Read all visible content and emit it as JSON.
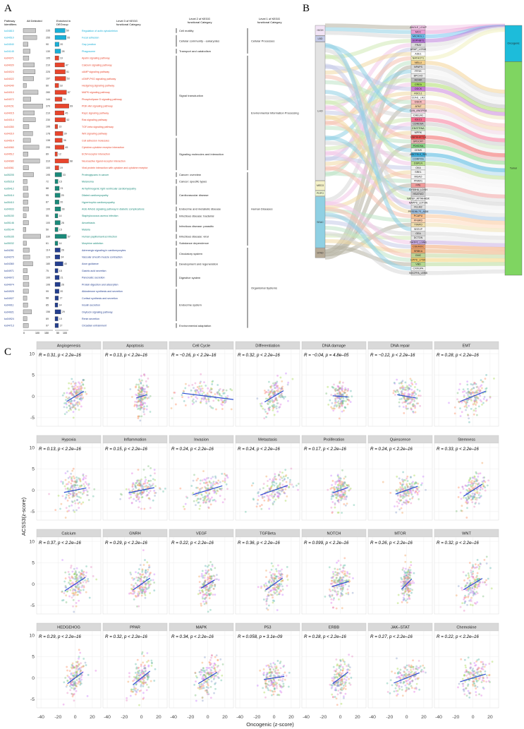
{
  "panels": {
    "a": "A",
    "b": "B",
    "c": "C"
  },
  "panel_a": {
    "headers": {
      "pathway": [
        "Pathway",
        "Identifiers"
      ],
      "all": [
        "All Detected"
      ],
      "enriched": [
        "Enriched in",
        "DEGroup"
      ],
      "level3": [
        "Level 3 of KEGG",
        "functional Category"
      ],
      "level2": [
        "Level 2 of KEGG",
        "functional Category"
      ],
      "level1": [
        "Level 1 of KEGG",
        "functional Category"
      ]
    },
    "axis_ticks": [
      "0",
      "100",
      "150",
      "50",
      "100"
    ],
    "rows": [
      {
        "id": "ko04810",
        "all": 235,
        "enr": 50,
        "name": "Regulation of actin cytoskeleton",
        "c": "#1ab0d8"
      },
      {
        "id": "ko04510",
        "all": 255,
        "enr": 55,
        "name": "Focal adhesion",
        "c": "#1ab0d8"
      },
      {
        "id": "ko04540",
        "all": 90,
        "enr": 20,
        "name": "Gap junction",
        "c": "#1ab0d8"
      },
      {
        "id": "ko04145",
        "all": 130,
        "enr": 28,
        "name": "Phagosome",
        "c": "#1ab0d8"
      },
      {
        "id": "ko04371",
        "all": 105,
        "enr": 19,
        "name": "Apelin signaling pathway",
        "c": "#e8452c"
      },
      {
        "id": "ko04020",
        "all": 210,
        "enr": 47,
        "name": "Calcium signaling pathway",
        "c": "#e8452c"
      },
      {
        "id": "ko04024",
        "all": 225,
        "enr": 51,
        "name": "cAMP signaling pathway",
        "c": "#e8452c"
      },
      {
        "id": "ko04022",
        "all": 197,
        "enr": 53,
        "name": "cGMP-PKG signaling pathway",
        "c": "#e8452c"
      },
      {
        "id": "ko04340",
        "all": 60,
        "enr": 18,
        "name": "Hedgehog signaling pathway",
        "c": "#e8452c"
      },
      {
        "id": "ko04010",
        "all": 280,
        "enr": 57,
        "name": "MAPK signaling pathway",
        "c": "#e8452c"
      },
      {
        "id": "ko04072",
        "all": 144,
        "enr": 35,
        "name": "Phospholipase D signaling pathway",
        "c": "#e8452c"
      },
      {
        "id": "ko04151",
        "all": 370,
        "enr": 69,
        "name": "PI3K-Akt signaling pathway",
        "c": "#e8452c"
      },
      {
        "id": "ko04015",
        "all": 210,
        "enr": 45,
        "name": "Rap1 signaling pathway",
        "c": "#e8452c"
      },
      {
        "id": "ko04014",
        "all": 230,
        "enr": 52,
        "name": "Ras signaling pathway",
        "c": "#e8452c"
      },
      {
        "id": "ko04350",
        "all": 106,
        "enr": 13,
        "name": "TGF-beta signaling pathway",
        "c": "#e8452c"
      },
      {
        "id": "ko04310",
        "all": 178,
        "enr": 39,
        "name": "Wnt signaling pathway",
        "c": "#e8452c"
      },
      {
        "id": "ko04514",
        "all": 138,
        "enr": 36,
        "name": "Cell adhesion molecules",
        "c": "#e8452c"
      },
      {
        "id": "ko04060",
        "all": 295,
        "enr": 45,
        "name": "Cytokine-cytokine receptor interaction",
        "c": "#e8452c"
      },
      {
        "id": "ko04512",
        "all": 89,
        "enr": 12,
        "name": "ECM-receptor interaction",
        "c": "#e8452c"
      },
      {
        "id": "ko04080",
        "all": 310,
        "enr": 68,
        "name": "Neuroactive ligand-receptor interaction",
        "c": "#e8452c"
      },
      {
        "id": "ko04061",
        "all": 100,
        "enr": 19,
        "name": "Viral protein interaction with cytokine and cytokine receptor",
        "c": "#e8452c"
      },
      {
        "id": "ko05205",
        "all": 195,
        "enr": 33,
        "name": "Proteoglycans in cancer",
        "c": "#1a8a7a"
      },
      {
        "id": "ko05218",
        "all": 72,
        "enr": 15,
        "name": "Melanoma",
        "c": "#1a8a7a"
      },
      {
        "id": "ko05412",
        "all": 88,
        "enr": 21,
        "name": "Arrhythmogenic right ventricular cardiomyopathy",
        "c": "#1a8a7a"
      },
      {
        "id": "ko05414",
        "all": 95,
        "enr": 25,
        "name": "Dilated cardiomyopathy",
        "c": "#1a8a7a"
      },
      {
        "id": "ko05410",
        "all": 87,
        "enr": 20,
        "name": "Hypertrophic cardiomyopathy",
        "c": "#1a8a7a"
      },
      {
        "id": "ko04933",
        "all": 100,
        "enr": 28,
        "name": "AGE-RAGE signaling pathway in diabetic complications",
        "c": "#1a8a7a"
      },
      {
        "id": "ko05150",
        "all": 55,
        "enr": 14,
        "name": "Staphylococcus aureus infection",
        "c": "#1a8a7a"
      },
      {
        "id": "ko05146",
        "all": 100,
        "enr": 26,
        "name": "Amoebiasis",
        "c": "#1a8a7a"
      },
      {
        "id": "ko05144",
        "all": 50,
        "enr": 15,
        "name": "Malaria",
        "c": "#1a8a7a"
      },
      {
        "id": "ko05165",
        "all": 330,
        "enr": 57,
        "name": "Human papillomavirus infection",
        "c": "#1a8a7a"
      },
      {
        "id": "ko05032",
        "all": 61,
        "enr": 14,
        "name": "Morphine addiction",
        "c": "#1a8a7a"
      },
      {
        "id": "ko04261",
        "all": 114,
        "enr": 26,
        "name": "Adrenergic signaling in cardiomyocytes",
        "c": "#243f8f"
      },
      {
        "id": "ko04270",
        "all": 124,
        "enr": 24,
        "name": "Vascular smooth muscle contraction",
        "c": "#243f8f"
      },
      {
        "id": "ko04360",
        "all": 180,
        "enr": 40,
        "name": "Axon guidance",
        "c": "#243f8f"
      },
      {
        "id": "ko04971",
        "all": 75,
        "enr": 15,
        "name": "Gastric acid secretion",
        "c": "#243f8f"
      },
      {
        "id": "ko04972",
        "all": 100,
        "enr": 21,
        "name": "Pancreatic secretion",
        "c": "#243f8f"
      },
      {
        "id": "ko04974",
        "all": 106,
        "enr": 26,
        "name": "Protein digestion and absorption",
        "c": "#243f8f"
      },
      {
        "id": "ko04925",
        "all": 99,
        "enr": 20,
        "name": "Aldosterone synthesis and secretion",
        "c": "#243f8f"
      },
      {
        "id": "ko04927",
        "all": 68,
        "enr": 17,
        "name": "Cortisol synthesis and secretion",
        "c": "#243f8f"
      },
      {
        "id": "ko04911",
        "all": 85,
        "enr": 14,
        "name": "Insulin secretion",
        "c": "#243f8f"
      },
      {
        "id": "ko04921",
        "all": 156,
        "enr": 29,
        "name": "Oxytocin signaling pathway",
        "c": "#243f8f"
      },
      {
        "id": "ko04924",
        "all": 69,
        "enr": 15,
        "name": "Renin secretion",
        "c": "#243f8f"
      },
      {
        "id": "ko04713",
        "all": 97,
        "enr": 17,
        "name": "Circadian entrainment",
        "c": "#243f8f"
      }
    ],
    "level2": [
      {
        "name": "Cell motility",
        "from": 0,
        "to": 0
      },
      {
        "name": "Cellular community - eukaryotes",
        "from": 1,
        "to": 2
      },
      {
        "name": "Transport and catabolism",
        "from": 3,
        "to": 3
      },
      {
        "name": "Signal transduction",
        "from": 4,
        "to": 15
      },
      {
        "name": "Signaling molecules and interaction",
        "from": 16,
        "to": 20
      },
      {
        "name": "Cancer: overview",
        "from": 21,
        "to": 21
      },
      {
        "name": "Cancer: specific types",
        "from": 22,
        "to": 22
      },
      {
        "name": "Cardiovascular disease",
        "from": 23,
        "to": 25
      },
      {
        "name": "Endocrine and metabolic disease",
        "from": 26,
        "to": 26
      },
      {
        "name": "Infectious disease: bacterial",
        "from": 27,
        "to": 27
      },
      {
        "name": "Infectious disease: parasitic",
        "from": 28,
        "to": 29
      },
      {
        "name": "Infectious disease: viral",
        "from": 30,
        "to": 30
      },
      {
        "name": "Substance dependence",
        "from": 31,
        "to": 31
      },
      {
        "name": "Circulatory system",
        "from": 32,
        "to": 33
      },
      {
        "name": "Development and regeneration",
        "from": 34,
        "to": 34
      },
      {
        "name": "Digestive system",
        "from": 35,
        "to": 37
      },
      {
        "name": "Endocrine system",
        "from": 38,
        "to": 42
      },
      {
        "name": "Environmental adaptation",
        "from": 43,
        "to": 43
      }
    ],
    "level1": [
      {
        "name": "Cellular Processes",
        "from": 0,
        "to": 3
      },
      {
        "name": "Environmental Information Processing",
        "from": 4,
        "to": 20
      },
      {
        "name": "Human Diseases",
        "from": 21,
        "to": 31
      },
      {
        "name": "Organismal Systems",
        "from": 32,
        "to": 43
      }
    ]
  },
  "panel_b": {
    "left_nodes": [
      {
        "label": "HIGH",
        "color": "#f2e4f6",
        "from": 0,
        "to": 0.04
      },
      {
        "label": "LBD",
        "color": "#c5cbe8",
        "from": 0.042,
        "to": 0.065
      },
      {
        "label": "LHO",
        "color": "#e3e3e3",
        "from": 0.067,
        "to": 0.62
      },
      {
        "label": "MED3",
        "color": "#f4f1c8",
        "from": 0.622,
        "to": 0.66
      },
      {
        "label": "PDPO",
        "color": "#eef7d0",
        "from": 0.662,
        "to": 0.683
      },
      {
        "label": "SEAC",
        "color": "#8fd0e3",
        "from": 0.685,
        "to": 0.89
      },
      {
        "label": "STAD",
        "color": "#b6aa96",
        "from": 0.892,
        "to": 0.93
      }
    ],
    "genes": [
      "ANGLE_LDUP",
      "MCC",
      "MICROL1",
      "SOPNBT1",
      "FRAT",
      "ARAP_LOSAI",
      "ADE1",
      "NATHOT1",
      "NELLI",
      "NPAPS",
      "FRYK",
      "BPCHO",
      "ACHIK",
      "CREA",
      "ODCK",
      "ASCL1",
      "CDN1_LR3",
      "DSCK",
      "ATNT",
      "CAN_ANGPEA",
      "CHELA1",
      "ICEC1",
      "CDNDSA",
      "ENSTRNA",
      "MPRK",
      "GNPHHKT1A",
      "SPDCRT",
      "PDKDSA",
      "CEMS",
      "ABCTEL0_SIS",
      "CORPOS",
      "DSPLN",
      "OKA",
      "SRE1",
      "MGAO",
      "PRAR1",
      "FPE",
      "SYS5HU_LDSH",
      "HSATMO",
      "NATEF_ATTAHASK",
      "NAPPS_LDTON",
      "FELM2",
      "PRSDBL7S_ADM",
      "PCAPU",
      "PFBRD",
      "TTAPO",
      "SEEVP",
      "GEA",
      "DCTDN",
      "NATPC_LSNB",
      "CDEMOC",
      "SRBKA",
      "GMC",
      "EPPD_LPDK",
      "VBD",
      "CXRGPA",
      "NGCFFA_LEBB"
    ],
    "gene_colors": [
      "#f3c7e7",
      "#e79bd3",
      "#6ec2f0",
      "#b673d8",
      "#dcdcdc",
      "#e9e9e9",
      "#ffffff",
      "#f0f0b8",
      "#f4cf8c",
      "#dadada",
      "#f2f2f2",
      "#ededed",
      "#bcbcbc",
      "#a5d95e",
      "#c57bd8",
      "#e9e6b5",
      "#ffffff",
      "#f7bcbc",
      "#f3d2a8",
      "#f0cfe1",
      "#f1f1f1",
      "#f76b8f",
      "#c8c8c8",
      "#cce8c0",
      "#eeeeee",
      "#ef5353",
      "#e8b4b4",
      "#88d686",
      "#f1f1f1",
      "#3aaedc",
      "#a9d6ec",
      "#b6de8a",
      "#efefef",
      "#f3f3f3",
      "#f7f7f7",
      "#f8f8f8",
      "#f09a9a",
      "#dddddd",
      "#cecece",
      "#eeeeee",
      "#f3f3f3",
      "#e0e0e0",
      "#9fc3e5",
      "#f9c18f",
      "#ffd5b5",
      "#eeddaa",
      "#f7f7f7",
      "#d7d7d7",
      "#e7e7e7",
      "#c5aae2",
      "#f1a06a",
      "#e9a66e",
      "#bcd394",
      "#f4d070",
      "#b2d88f",
      "#f5f5f5",
      "#d8d8d8"
    ],
    "right_nodes": [
      {
        "label": "Oncogenic",
        "color": "#1dbcda",
        "from": 0,
        "to": 0.145
      },
      {
        "label": "Tumor",
        "color": "#7fd561",
        "from": 0.145,
        "to": 1
      }
    ]
  },
  "panel_c": {
    "ylabel": "ACSS3(z-score)",
    "xlabel": "Oncogenic (z-score)",
    "x_ticks": [
      "-40",
      "-20",
      "0",
      "20"
    ],
    "y_ticks": [
      "10",
      "5",
      "0",
      "-5"
    ],
    "facets": [
      {
        "name": "Angiogenesis",
        "stat": "R = 0.31, p < 2.2e–16",
        "slope": 0.12,
        "width": 20,
        "height": 6
      },
      {
        "name": "Apoptosis",
        "stat": "R = 0.13, p < 2.2e–16",
        "slope": 0.06,
        "width": 12,
        "height": 7
      },
      {
        "name": "Cell Cycle",
        "stat": "R = −0.16, p < 2.2e–16",
        "slope": -0.025,
        "width": 60,
        "height": 5
      },
      {
        "name": "Differentiation",
        "stat": "R = 0.32, p < 2.2e–16",
        "slope": 0.12,
        "width": 22,
        "height": 6
      },
      {
        "name": "DNA damage",
        "stat": "R = −0.04, p = 4.8e–05",
        "slope": -0.015,
        "width": 18,
        "height": 6
      },
      {
        "name": "DNA repair",
        "stat": "R = −0.12, p < 2.2e–16",
        "slope": -0.035,
        "width": 22,
        "height": 6
      },
      {
        "name": "EMT",
        "stat": "R = 0.28, p < 2.2e–16",
        "slope": 0.08,
        "width": 30,
        "height": 6
      },
      {
        "name": "Hypoxia",
        "stat": "R = 0.13, p < 2.2e–16",
        "slope": 0.04,
        "width": 26,
        "height": 7
      },
      {
        "name": "Inflammation",
        "stat": "R = 0.15, p < 2.2e–16",
        "slope": 0.04,
        "width": 30,
        "height": 6
      },
      {
        "name": "Invasion",
        "stat": "R = 0.24, p < 2.2e–16",
        "slope": 0.06,
        "width": 34,
        "height": 6
      },
      {
        "name": "Metastasis",
        "stat": "R = 0.24, p < 2.2e–16",
        "slope": 0.07,
        "width": 32,
        "height": 6
      },
      {
        "name": "Proliferation",
        "stat": "R = 0.17, p < 2.2e–16",
        "slope": 0.07,
        "width": 18,
        "height": 7
      },
      {
        "name": "Quiescence",
        "stat": "R = 0.24, p < 2.2e–16",
        "slope": 0.07,
        "width": 26,
        "height": 6
      },
      {
        "name": "Stemness",
        "stat": "R = 0.33, p < 2.2e–16",
        "slope": 0.13,
        "width": 22,
        "height": 6
      },
      {
        "name": "Calcium",
        "stat": "R = 0.37, p < 2.2e–16",
        "slope": 0.13,
        "width": 24,
        "height": 7
      },
      {
        "name": "GNRH",
        "stat": "R = 0.29, p < 2.2e–16",
        "slope": 0.14,
        "width": 20,
        "height": 7
      },
      {
        "name": "VEGF",
        "stat": "R = 0.22, p < 2.2e–16",
        "slope": 0.12,
        "width": 16,
        "height": 7
      },
      {
        "name": "TGFBeta",
        "stat": "R = 0.36, p < 2.2e–16",
        "slope": 0.14,
        "width": 20,
        "height": 7
      },
      {
        "name": "NOTCH",
        "stat": "R = 0.099, p < 2.2e–16",
        "slope": 0.06,
        "width": 20,
        "height": 7
      },
      {
        "name": "MTOR",
        "stat": "R = 0.26, p < 2.2e–16",
        "slope": 0.2,
        "width": 12,
        "height": 7
      },
      {
        "name": "WNT",
        "stat": "R = 0.32, p < 2.2e–16",
        "slope": 0.12,
        "width": 22,
        "height": 7
      },
      {
        "name": "HEDGEHOG",
        "stat": "R = 0.29, p < 2.2e–16",
        "slope": 0.15,
        "width": 18,
        "height": 7
      },
      {
        "name": "PPAR",
        "stat": "R = 0.32, p < 2.2e–16",
        "slope": 0.16,
        "width": 20,
        "height": 7
      },
      {
        "name": "MAPK",
        "stat": "R = 0.34, p < 2.2e–16",
        "slope": 0.12,
        "width": 22,
        "height": 7
      },
      {
        "name": "P53",
        "stat": "R = 0.058, p = 3.1e–09",
        "slope": 0.03,
        "width": 24,
        "height": 6
      },
      {
        "name": "ERBB",
        "stat": "R = 0.28, p < 2.2e–16",
        "slope": 0.15,
        "width": 18,
        "height": 7
      },
      {
        "name": "JAK–STAT",
        "stat": "R = 0.27, p < 2.2e–16",
        "slope": 0.08,
        "width": 30,
        "height": 6
      },
      {
        "name": "Chemokine",
        "stat": "R = 0.22, p < 2.2e–16",
        "slope": 0.06,
        "width": 30,
        "height": 6
      }
    ]
  }
}
